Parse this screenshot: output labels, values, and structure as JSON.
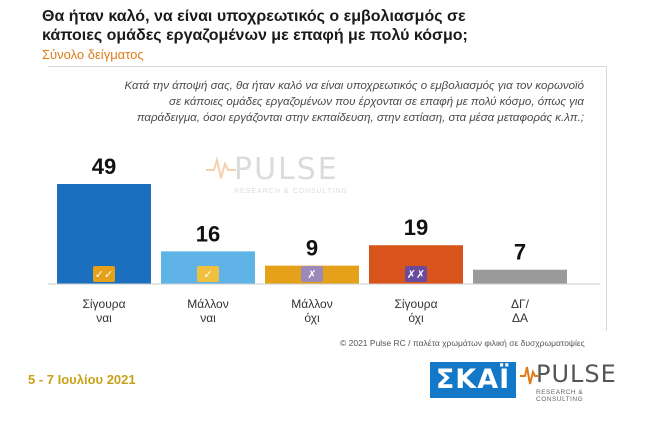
{
  "header": {
    "title": "Θα ήταν καλό, να είναι υποχρεωτικός ο εμβολιασμός σε κάποιες ομάδες εργαζομένων με επαφή με πολύ κόσμο;",
    "subtitle": "Σύνολο δείγματος"
  },
  "question_text": "Κατά την άποψή σας, θα ήταν καλό να είναι υποχρεωτικός ο εμβολιασμός για τον κορωνοϊό σε κάποιες ομάδες εργαζομένων που έρχονται σε επαφή με πολύ κόσμο, όπως για παράδειγμα, όσοι εργάζονται στην εκπαίδευση, στην εστίαση, στα μέσα μεταφοράς κ.λπ.;",
  "chart_data": {
    "type": "bar",
    "title": "Θα ήταν καλό, να είναι υποχρεωτικός ο εμβολιασμός σε κάποιες ομάδες εργαζομένων με επαφή με πολύ κόσμο;",
    "categories": [
      [
        "Σίγουρα",
        "ναι"
      ],
      [
        "Μάλλον",
        "ναι"
      ],
      [
        "Μάλλον",
        "όχι"
      ],
      [
        "Σίγουρα",
        "όχι"
      ],
      [
        "ΔΓ/",
        "ΔΑ"
      ]
    ],
    "values": [
      49,
      16,
      9,
      19,
      7
    ],
    "colors": [
      "#1a6fbe",
      "#5fb3e6",
      "#e6a11a",
      "#d9541a",
      "#9a9a9a"
    ],
    "badges": [
      "✓✓",
      "✓",
      "✗",
      "✗✗",
      ""
    ],
    "badge_colors": [
      "#e6a11a",
      "#f0c040",
      "#9b8ab8",
      "#6a4c9c",
      ""
    ],
    "xlabel": "",
    "ylabel": "",
    "ylim": [
      0,
      60
    ],
    "grid": false,
    "legend": "none"
  },
  "watermark": {
    "brand": "PULSE",
    "tagline": "RESEARCH & CONSULTING"
  },
  "footer": {
    "copyright": "© 2021 Pulse RC  /  παλέτα χρωμάτων φιλική σε δυσχρωματοψίες",
    "date": "5 - 7  Ιουλίου  2021",
    "logo_skai": "ΣΚΑΪ",
    "logo_pulse": "PULSE",
    "logo_pulse_sub": "RESEARCH & CONSULTING"
  }
}
